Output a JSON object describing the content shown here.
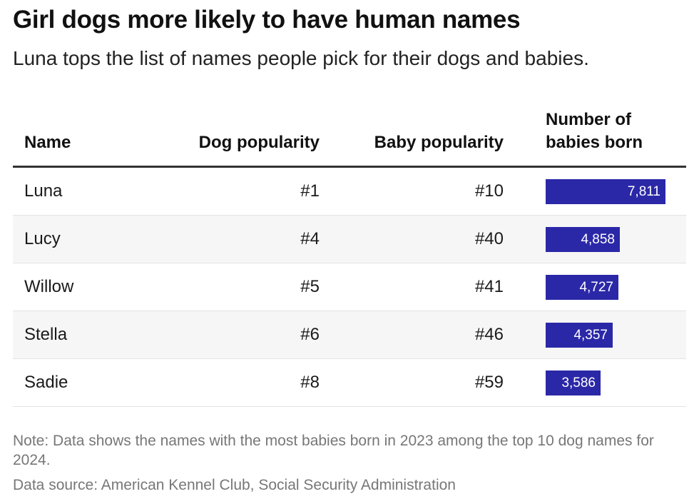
{
  "title": "Girl dogs more likely to have human names",
  "subtitle": "Luna tops the list of names people pick for their dogs and babies.",
  "columns": {
    "name": "Name",
    "dog": "Dog popularity",
    "baby": "Baby popularity",
    "number_line1": "Number of",
    "number_line2": "babies born"
  },
  "chart_data": {
    "type": "table",
    "bar_color": "#2b28a8",
    "bar_max": 7811,
    "rows": [
      {
        "name": "Luna",
        "dog": "#1",
        "baby": "#10",
        "babies": 7811,
        "babies_label": "7,811"
      },
      {
        "name": "Lucy",
        "dog": "#4",
        "baby": "#40",
        "babies": 4858,
        "babies_label": "4,858"
      },
      {
        "name": "Willow",
        "dog": "#5",
        "baby": "#41",
        "babies": 4727,
        "babies_label": "4,727"
      },
      {
        "name": "Stella",
        "dog": "#6",
        "baby": "#46",
        "babies": 4357,
        "babies_label": "4,357"
      },
      {
        "name": "Sadie",
        "dog": "#8",
        "baby": "#59",
        "babies": 3586,
        "babies_label": "3,586"
      }
    ]
  },
  "note": "Note: Data shows the names with the most babies born in 2023 among the top 10 dog names for 2024.",
  "source": "Data source: American Kennel Club, Social Security Administration"
}
